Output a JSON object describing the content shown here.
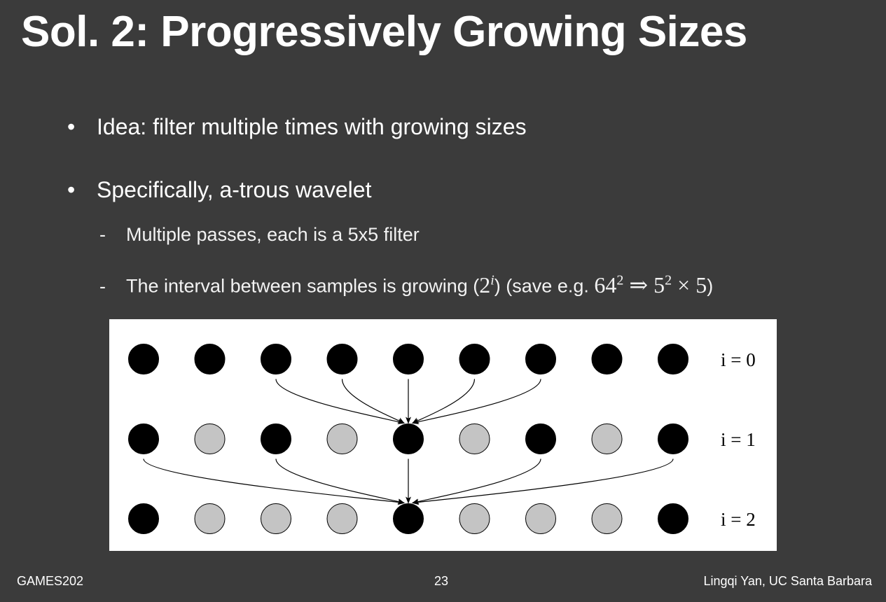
{
  "slide": {
    "title": "Sol. 2: Progressively Growing Sizes",
    "bullets": [
      {
        "text": "Idea: filter multiple times with growing sizes"
      },
      {
        "text": "Specifically, a-trous wavelet",
        "subitems": [
          {
            "text": "Multiple passes, each is a 5x5 filter"
          },
          {
            "text_before": "The interval between samples is growing (",
            "math_interval": "2",
            "math_interval_exp": "i",
            "text_middle": ") (save e.g. ",
            "math_lhs": "64",
            "math_lhs_exp": "2",
            "math_arrow": "⇒",
            "math_rhs": "5",
            "math_rhs_exp": "2",
            "math_times": "× 5",
            "text_after": ")"
          }
        ]
      }
    ],
    "bullet_glyph": "•",
    "dash_glyph": "-"
  },
  "figure": {
    "rows": [
      {
        "label": "i = 0",
        "dots": [
          "black",
          "black",
          "black",
          "black",
          "black",
          "black",
          "black",
          "black",
          "black"
        ]
      },
      {
        "label": "i = 1",
        "dots": [
          "black",
          "gray",
          "black",
          "gray",
          "black",
          "gray",
          "black",
          "gray",
          "black"
        ]
      },
      {
        "label": "i = 2",
        "dots": [
          "black",
          "gray",
          "gray",
          "gray",
          "black",
          "gray",
          "gray",
          "gray",
          "black"
        ]
      }
    ],
    "colors": {
      "black": "#000000",
      "gray": "#c4c4c4",
      "background": "#ffffff"
    }
  },
  "footer": {
    "left": "GAMES202",
    "center": "23",
    "right": "Lingqi Yan, UC Santa Barbara"
  }
}
